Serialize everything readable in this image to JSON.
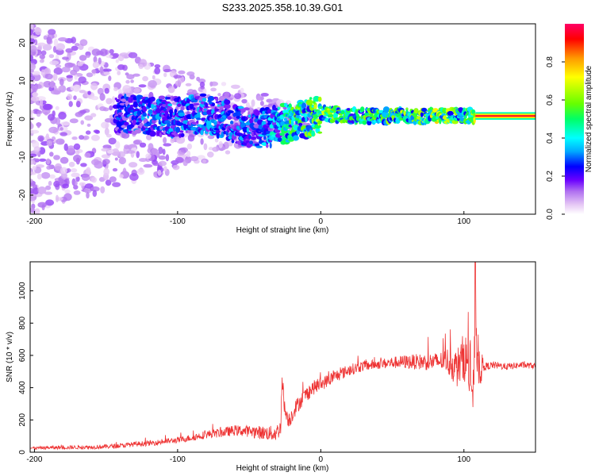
{
  "title": "S233.2025.358.10.39.G01",
  "chart_data": [
    {
      "type": "heatmap",
      "name": "spectrogram",
      "xlabel": "Height of straight line (km)",
      "ylabel": "Frequency (Hz)",
      "xlim": [
        -203,
        150
      ],
      "ylim": [
        -25,
        25
      ],
      "xticks": [
        -200,
        -100,
        0,
        100
      ],
      "yticks": [
        -20,
        -10,
        0,
        10,
        20
      ],
      "colorbar": {
        "label": "Normalized spectral amplitude",
        "range": [
          0,
          1
        ],
        "ticks": [
          "0.0",
          "0.2",
          "0.4",
          "0.6",
          "0.8"
        ],
        "tick_values": [
          0.0,
          0.2,
          0.4,
          0.6,
          0.8
        ],
        "colors": [
          "#ffffff",
          "#e6c8f5",
          "#b070f0",
          "#6a00ff",
          "#0000ff",
          "#00aaff",
          "#00ffff",
          "#00ff66",
          "#66ff00",
          "#ffff00",
          "#ff9900",
          "#ff0000",
          "#ff0066"
        ]
      },
      "ridge": [
        {
          "x": -145,
          "y": 1.5,
          "amp": 0.25
        },
        {
          "x": -120,
          "y": 1.0,
          "amp": 0.3
        },
        {
          "x": -100,
          "y": 0.5,
          "amp": 0.3
        },
        {
          "x": -80,
          "y": 1.5,
          "amp": 0.3
        },
        {
          "x": -60,
          "y": -1.0,
          "amp": 0.3
        },
        {
          "x": -45,
          "y": -3.0,
          "amp": 0.3
        },
        {
          "x": -30,
          "y": -1.5,
          "amp": 0.4
        },
        {
          "x": -20,
          "y": -1.0,
          "amp": 0.5
        },
        {
          "x": -10,
          "y": 0.0,
          "amp": 0.55
        },
        {
          "x": 0,
          "y": 1.5,
          "amp": 0.6
        },
        {
          "x": 20,
          "y": 0.8,
          "amp": 0.5
        },
        {
          "x": 50,
          "y": 0.8,
          "amp": 0.55
        },
        {
          "x": 80,
          "y": 0.8,
          "amp": 0.65
        },
        {
          "x": 105,
          "y": 1.0,
          "amp": 0.5
        },
        {
          "x": 110,
          "y": 0.8,
          "amp": 0.95
        },
        {
          "x": 150,
          "y": 0.8,
          "amp": 0.95
        }
      ]
    },
    {
      "type": "line",
      "name": "snr",
      "xlabel": "Height of straight line (km)",
      "ylabel": "SNR (10 * v/v)",
      "xlim": [
        -203,
        150
      ],
      "ylim": [
        0,
        1180
      ],
      "xticks": [
        -200,
        -100,
        0,
        100
      ],
      "yticks": [
        0,
        200,
        400,
        600,
        800,
        1000
      ],
      "color": "#ee3333",
      "series": [
        {
          "name": "SNR",
          "x": [
            -203,
            -190,
            -175,
            -160,
            -150,
            -140,
            -130,
            -120,
            -110,
            -100,
            -90,
            -80,
            -70,
            -60,
            -50,
            -40,
            -32,
            -28,
            -27,
            -25,
            -22,
            -18,
            -14,
            -10,
            -5,
            0,
            10,
            20,
            30,
            40,
            50,
            60,
            70,
            80,
            88,
            92,
            95,
            98,
            100,
            103,
            105,
            107,
            108,
            109,
            110,
            112,
            115,
            120,
            130,
            140,
            150
          ],
          "y": [
            25,
            28,
            30,
            32,
            35,
            40,
            50,
            55,
            65,
            75,
            90,
            110,
            120,
            135,
            130,
            120,
            115,
            150,
            460,
            250,
            200,
            270,
            320,
            360,
            400,
            420,
            470,
            510,
            535,
            545,
            555,
            560,
            560,
            560,
            570,
            540,
            520,
            560,
            600,
            540,
            460,
            300,
            1180,
            600,
            560,
            520,
            530,
            540,
            530,
            540,
            535
          ]
        }
      ],
      "noise_amplitude": [
        {
          "x": -203,
          "a": 15
        },
        {
          "x": -100,
          "a": 30
        },
        {
          "x": -50,
          "a": 60
        },
        {
          "x": -25,
          "a": 90
        },
        {
          "x": 0,
          "a": 70
        },
        {
          "x": 40,
          "a": 50
        },
        {
          "x": 85,
          "a": 100
        },
        {
          "x": 100,
          "a": 250
        },
        {
          "x": 108,
          "a": 350
        },
        {
          "x": 115,
          "a": 40
        },
        {
          "x": 150,
          "a": 30
        }
      ]
    }
  ]
}
